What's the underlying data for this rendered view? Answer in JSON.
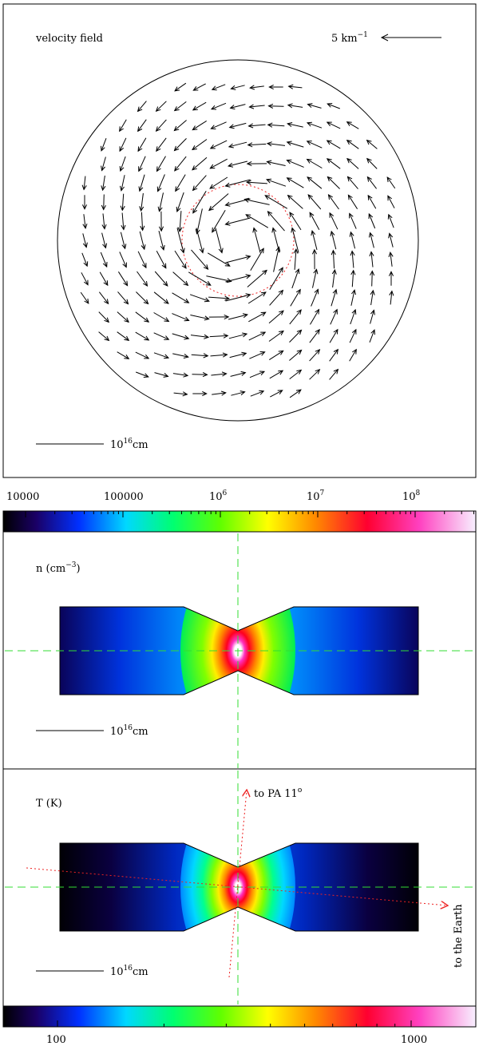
{
  "velocity_panel": {
    "title": "velocity field",
    "speed_scale_prefix": "5 km",
    "speed_scale_exp": "−1",
    "scale_bar_base": "10",
    "scale_bar_exp": "16",
    "scale_bar_unit": "cm"
  },
  "density_colorbar": {
    "ticks": [
      {
        "base": "10000",
        "exp": ""
      },
      {
        "base": "100000",
        "exp": ""
      },
      {
        "base": "10",
        "exp": "6"
      },
      {
        "base": "10",
        "exp": "7"
      },
      {
        "base": "10",
        "exp": "8"
      }
    ]
  },
  "density_panel": {
    "label_main": "n (cm",
    "label_exp": "−3",
    "label_close": ")",
    "scale_bar_base": "10",
    "scale_bar_exp": "16",
    "scale_bar_unit": "cm"
  },
  "temperature_panel": {
    "label": "T (K)",
    "pa_label": "to PA 11",
    "pa_deg": "o",
    "earth_label": "to the Earth",
    "scale_bar_base": "10",
    "scale_bar_exp": "16",
    "scale_bar_unit": "cm"
  },
  "temperature_colorbar": {
    "ticks": [
      "100",
      "1000"
    ]
  },
  "colors": {
    "axis_dash": "#33dd33",
    "sightline": "#ee2222",
    "inner_circle": "#ee2222"
  }
}
